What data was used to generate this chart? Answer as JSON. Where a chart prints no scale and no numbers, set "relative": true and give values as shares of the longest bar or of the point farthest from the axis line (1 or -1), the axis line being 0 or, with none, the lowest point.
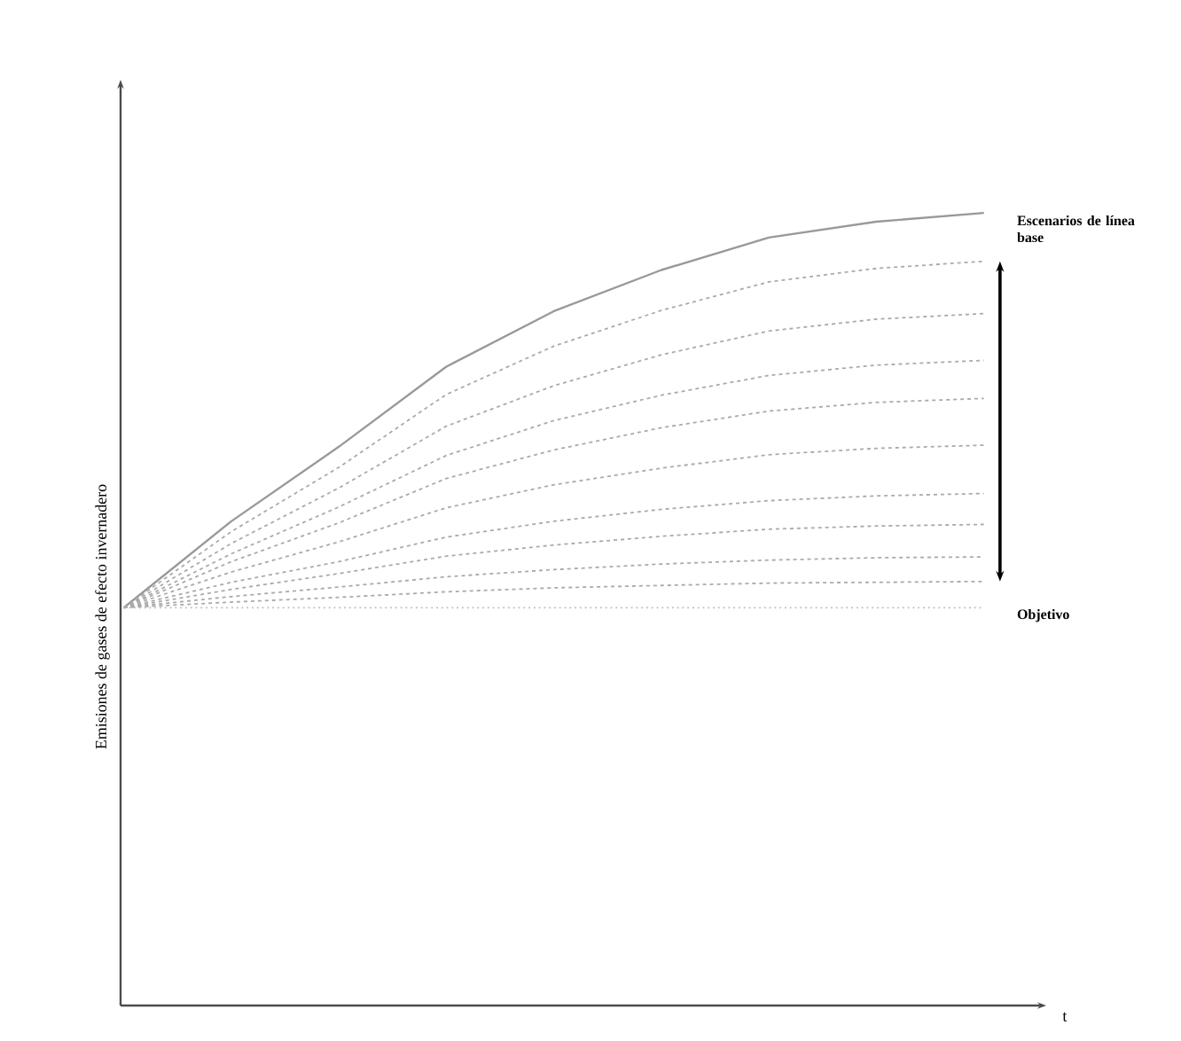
{
  "chart_data": {
    "type": "line",
    "relative": true,
    "xlabel": "t",
    "ylabel": "Emisiones de gases de efecto invernadero",
    "categories": [
      null,
      null,
      null,
      null,
      null,
      null,
      null,
      null,
      null
    ],
    "series": [
      {
        "color": "#999999",
        "line_style": "solid",
        "values": [
          0.502,
          0.611,
          0.705,
          0.806,
          0.876,
          0.928,
          0.969,
          0.989,
          1.0
        ]
      },
      {
        "color": "#aaaaaa",
        "line_style": "dashed",
        "values": [
          0.502,
          0.598,
          0.679,
          0.771,
          0.832,
          0.877,
          0.913,
          0.93,
          0.939
        ]
      },
      {
        "color": "#aaaaaa",
        "line_style": "dashed",
        "values": [
          0.502,
          0.583,
          0.653,
          0.731,
          0.782,
          0.821,
          0.851,
          0.866,
          0.873
        ]
      },
      {
        "color": "#aaaaaa",
        "line_style": "dashed",
        "values": [
          0.502,
          0.57,
          0.629,
          0.694,
          0.738,
          0.77,
          0.795,
          0.808,
          0.814
        ]
      },
      {
        "color": "#aaaaaa",
        "line_style": "dashed",
        "values": [
          0.502,
          0.56,
          0.609,
          0.665,
          0.701,
          0.729,
          0.75,
          0.761,
          0.766
        ]
      },
      {
        "color": "#aaaaaa",
        "line_style": "dashed",
        "values": [
          0.502,
          0.547,
          0.585,
          0.628,
          0.657,
          0.678,
          0.695,
          0.703,
          0.707
        ]
      },
      {
        "color": "#aaaaaa",
        "line_style": "dashed",
        "values": [
          0.502,
          0.534,
          0.56,
          0.591,
          0.611,
          0.626,
          0.637,
          0.643,
          0.646
        ]
      },
      {
        "color": "#aaaaaa",
        "line_style": "dashed",
        "values": [
          0.502,
          0.525,
          0.545,
          0.567,
          0.581,
          0.592,
          0.601,
          0.605,
          0.607
        ]
      },
      {
        "color": "#aaaaaa",
        "line_style": "dashed",
        "values": [
          0.502,
          0.516,
          0.528,
          0.541,
          0.55,
          0.557,
          0.562,
          0.565,
          0.566
        ]
      },
      {
        "color": "#aaaaaa",
        "line_style": "dashed",
        "values": [
          0.502,
          0.509,
          0.515,
          0.522,
          0.527,
          0.53,
          0.533,
          0.534,
          0.535
        ]
      },
      {
        "color": "#bbbbbb",
        "line_style": "dotted",
        "values": [
          0.502,
          0.502,
          0.502,
          0.502,
          0.502,
          0.502,
          0.502,
          0.502,
          0.502
        ]
      }
    ],
    "annotations": [
      "Escenarios de línea base",
      "Objetivo"
    ]
  }
}
